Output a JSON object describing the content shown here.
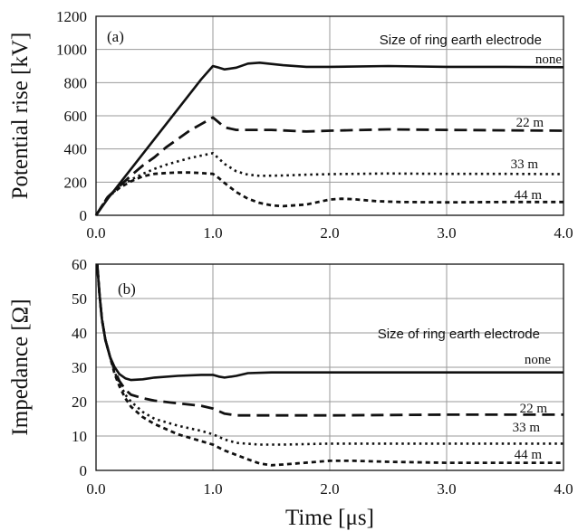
{
  "chart_data": [
    {
      "panel_label": "(a)",
      "type": "line",
      "ylabel": "Potential rise [kV]",
      "xlim": [
        0,
        4
      ],
      "ylim": [
        0,
        1200
      ],
      "x_ticks": [
        "0.0",
        "1.0",
        "2.0",
        "3.0",
        "4.0"
      ],
      "y_ticks": [
        "0",
        "200",
        "400",
        "600",
        "800",
        "1000",
        "1200"
      ],
      "grid": true,
      "annotation": "Size of ring earth electrode",
      "series": [
        {
          "name": "none",
          "style": "solid",
          "x": [
            0,
            0.1,
            0.2,
            0.3,
            0.4,
            0.5,
            0.6,
            0.7,
            0.8,
            0.9,
            1.0,
            1.05,
            1.1,
            1.2,
            1.3,
            1.4,
            1.6,
            1.8,
            2.0,
            2.5,
            3.0,
            3.5,
            4.0
          ],
          "y": [
            0,
            100,
            190,
            280,
            370,
            460,
            550,
            640,
            730,
            820,
            900,
            890,
            880,
            890,
            915,
            920,
            905,
            895,
            895,
            900,
            895,
            895,
            893
          ]
        },
        {
          "name": "22 m",
          "style": "dashed",
          "x": [
            0,
            0.1,
            0.2,
            0.3,
            0.4,
            0.5,
            0.6,
            0.7,
            0.8,
            0.9,
            1.0,
            1.05,
            1.1,
            1.2,
            1.5,
            1.8,
            2.0,
            2.5,
            3.0,
            3.5,
            4.0
          ],
          "y": [
            0,
            110,
            175,
            240,
            300,
            350,
            410,
            460,
            510,
            550,
            590,
            560,
            530,
            515,
            515,
            505,
            510,
            518,
            515,
            512,
            510
          ]
        },
        {
          "name": "33 m",
          "style": "dotted",
          "x": [
            0,
            0.1,
            0.2,
            0.3,
            0.4,
            0.5,
            0.6,
            0.7,
            0.8,
            0.9,
            1.0,
            1.1,
            1.2,
            1.3,
            1.4,
            1.6,
            1.8,
            2.0,
            2.5,
            3.0,
            3.5,
            4.0
          ],
          "y": [
            0,
            110,
            170,
            215,
            250,
            280,
            305,
            325,
            345,
            360,
            375,
            310,
            265,
            245,
            238,
            240,
            245,
            248,
            252,
            250,
            250,
            248
          ]
        },
        {
          "name": "44 m",
          "style": "densely-dashed",
          "x": [
            0,
            0.1,
            0.2,
            0.3,
            0.4,
            0.5,
            0.6,
            0.7,
            0.8,
            0.9,
            1.0,
            1.05,
            1.1,
            1.2,
            1.3,
            1.4,
            1.5,
            1.6,
            1.8,
            2.0,
            2.1,
            2.2,
            2.4,
            2.6,
            3.0,
            3.5,
            4.0
          ],
          "y": [
            0,
            110,
            165,
            205,
            235,
            250,
            255,
            258,
            258,
            255,
            250,
            225,
            195,
            140,
            100,
            75,
            60,
            55,
            65,
            95,
            100,
            97,
            85,
            80,
            78,
            80,
            80
          ]
        }
      ]
    },
    {
      "panel_label": "(b)",
      "type": "line",
      "xlabel": "Time [μs]",
      "ylabel": "Impedance [Ω]",
      "xlim": [
        0,
        4
      ],
      "ylim": [
        0,
        60
      ],
      "x_ticks": [
        "0.0",
        "1.0",
        "2.0",
        "3.0",
        "4.0"
      ],
      "y_ticks": [
        "0",
        "10",
        "20",
        "30",
        "40",
        "50",
        "60"
      ],
      "grid": true,
      "annotation": "Size of ring earth electrode",
      "series": [
        {
          "name": "none",
          "style": "solid",
          "x": [
            0.01,
            0.03,
            0.05,
            0.08,
            0.12,
            0.16,
            0.2,
            0.25,
            0.3,
            0.4,
            0.5,
            0.7,
            0.9,
            1.0,
            1.05,
            1.1,
            1.2,
            1.3,
            1.5,
            2.0,
            3.0,
            4.0
          ],
          "y": [
            60,
            51,
            44,
            38,
            33,
            30,
            28,
            26.8,
            26.3,
            26.5,
            27,
            27.5,
            27.8,
            27.8,
            27.3,
            27,
            27.5,
            28.3,
            28.5,
            28.5,
            28.5,
            28.5
          ]
        },
        {
          "name": "22 m",
          "style": "dashed",
          "x": [
            0.01,
            0.03,
            0.05,
            0.08,
            0.12,
            0.16,
            0.2,
            0.25,
            0.3,
            0.4,
            0.5,
            0.7,
            0.9,
            1.0,
            1.1,
            1.2,
            1.5,
            2.0,
            3.0,
            4.0
          ],
          "y": [
            60,
            51,
            44,
            38,
            33,
            29,
            26,
            23.5,
            22,
            21,
            20.3,
            19.5,
            18.8,
            18,
            16.5,
            16,
            16,
            16,
            16.2,
            16.2
          ]
        },
        {
          "name": "33 m",
          "style": "dotted",
          "x": [
            0.01,
            0.03,
            0.05,
            0.08,
            0.12,
            0.16,
            0.2,
            0.25,
            0.3,
            0.4,
            0.5,
            0.7,
            0.9,
            1.0,
            1.1,
            1.2,
            1.4,
            1.6,
            2.0,
            3.0,
            4.0
          ],
          "y": [
            60,
            51,
            44,
            38,
            33,
            28.5,
            25.5,
            22,
            20,
            17,
            15,
            13,
            11.5,
            10.5,
            9,
            8,
            7.5,
            7.5,
            7.8,
            7.8,
            7.8
          ]
        },
        {
          "name": "44 m",
          "style": "densely-dashed",
          "x": [
            0.01,
            0.03,
            0.05,
            0.08,
            0.12,
            0.16,
            0.2,
            0.25,
            0.3,
            0.4,
            0.5,
            0.7,
            0.9,
            1.0,
            1.1,
            1.2,
            1.3,
            1.4,
            1.5,
            1.6,
            2.0,
            2.2,
            2.5,
            3.0,
            4.0
          ],
          "y": [
            60,
            51,
            44,
            38,
            33,
            28,
            24.5,
            21,
            18.5,
            15.5,
            13.5,
            10.5,
            8.5,
            7.5,
            5.8,
            4.5,
            3.2,
            2,
            1.5,
            1.7,
            2.8,
            2.8,
            2.5,
            2.2,
            2.2
          ]
        }
      ]
    }
  ]
}
